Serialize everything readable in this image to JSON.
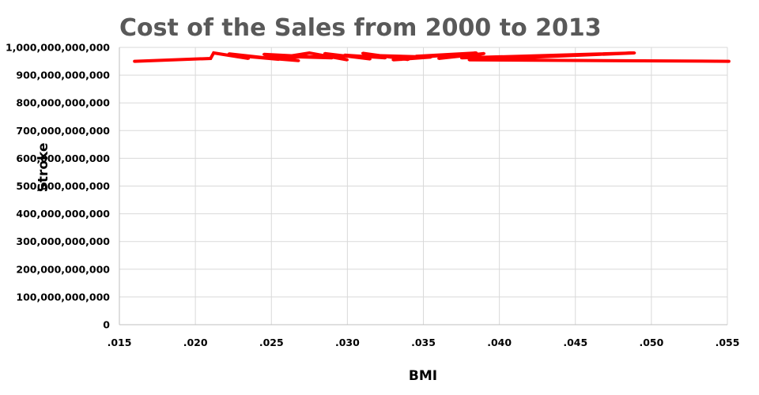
{
  "chart_data": {
    "type": "line",
    "title": "Cost of the Sales from 2000 to 2013",
    "xlabel": "BMI",
    "ylabel": "Stroke",
    "xlim": [
      0.015,
      0.055
    ],
    "ylim": [
      0,
      1000000000000
    ],
    "x_ticks": [
      ".015",
      ".020",
      ".025",
      ".030",
      ".035",
      ".040",
      ".045",
      ".050",
      ".055"
    ],
    "y_ticks": [
      "0",
      "100,000,000,000",
      "200,000,000,000",
      "300,000,000,000",
      "400,000,000,000",
      "500,000,000,000",
      "600,000,000,000",
      "700,000,000,000",
      "800,000,000,000",
      "900,000,000,000",
      "1,000,000,000,000"
    ],
    "grid": true,
    "legend": "none",
    "series_color": "#ff0000",
    "series": [
      {
        "points": [
          [
            0.016,
            950000000000
          ],
          [
            0.021,
            960000000000
          ],
          [
            0.0212,
            980000000000
          ],
          [
            0.0235,
            960000000000
          ],
          [
            0.0222,
            977000000000
          ],
          [
            0.0255,
            957000000000
          ],
          [
            0.0228,
            970000000000
          ],
          [
            0.0268,
            952000000000
          ],
          [
            0.0245,
            975000000000
          ],
          [
            0.029,
            962000000000
          ],
          [
            0.026,
            967000000000
          ],
          [
            0.0275,
            980000000000
          ],
          [
            0.03,
            955000000000
          ],
          [
            0.0285,
            978000000000
          ],
          [
            0.0315,
            958000000000
          ],
          [
            0.0298,
            972000000000
          ],
          [
            0.0325,
            962000000000
          ],
          [
            0.031,
            979000000000
          ],
          [
            0.034,
            956000000000
          ],
          [
            0.0322,
            970000000000
          ],
          [
            0.0355,
            965000000000
          ],
          [
            0.033,
            955000000000
          ],
          [
            0.037,
            975000000000
          ],
          [
            0.0345,
            968000000000
          ],
          [
            0.0385,
            980000000000
          ],
          [
            0.036,
            960000000000
          ],
          [
            0.039,
            978000000000
          ],
          [
            0.0375,
            962000000000
          ],
          [
            0.0489,
            980000000000
          ],
          [
            0.038,
            955000000000
          ],
          [
            0.0551,
            950000000000
          ]
        ]
      }
    ]
  }
}
